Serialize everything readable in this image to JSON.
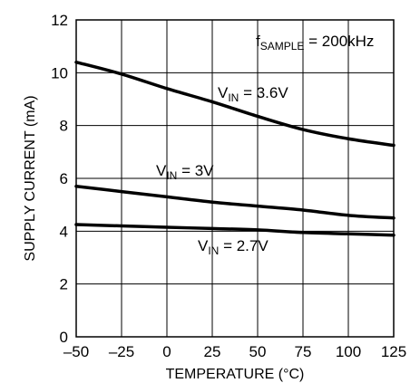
{
  "chart_data": {
    "type": "line",
    "title": "",
    "xlabel": "TEMPERATURE (°C)",
    "ylabel": "SUPPLY CURRENT (mA)",
    "xlim": [
      -50,
      125
    ],
    "ylim": [
      0,
      12
    ],
    "x_ticks": [
      -50,
      -25,
      0,
      25,
      50,
      75,
      100,
      125
    ],
    "y_ticks": [
      0,
      2,
      4,
      6,
      8,
      10,
      12
    ],
    "x_tick_labels": [
      "–50",
      "–25",
      "0",
      "25",
      "50",
      "75",
      "100",
      "125"
    ],
    "y_tick_labels": [
      "0",
      "2",
      "4",
      "6",
      "8",
      "10",
      "12"
    ],
    "grid": true,
    "annotation": {
      "main": "f",
      "sub": "SAMPLE",
      "rest": " = 200kHz"
    },
    "series": [
      {
        "name": "V_IN = 3.6V",
        "label": {
          "main": "V",
          "sub": "IN",
          "rest": " = 3.6V"
        },
        "x": [
          -50,
          -25,
          0,
          25,
          50,
          75,
          100,
          125
        ],
        "y": [
          10.4,
          9.95,
          9.4,
          8.9,
          8.35,
          7.85,
          7.5,
          7.25
        ]
      },
      {
        "name": "V_IN = 3V",
        "label": {
          "main": "V",
          "sub": "IN",
          "rest": " = 3V"
        },
        "x": [
          -50,
          -25,
          0,
          25,
          50,
          75,
          100,
          125
        ],
        "y": [
          5.7,
          5.5,
          5.3,
          5.1,
          4.95,
          4.8,
          4.6,
          4.5
        ]
      },
      {
        "name": "V_IN = 2.7V",
        "label": {
          "main": "V",
          "sub": "IN",
          "rest": " = 2.7V"
        },
        "x": [
          -50,
          -25,
          0,
          25,
          50,
          75,
          100,
          125
        ],
        "y": [
          4.25,
          4.2,
          4.15,
          4.1,
          4.05,
          3.95,
          3.9,
          3.85
        ]
      }
    ]
  }
}
